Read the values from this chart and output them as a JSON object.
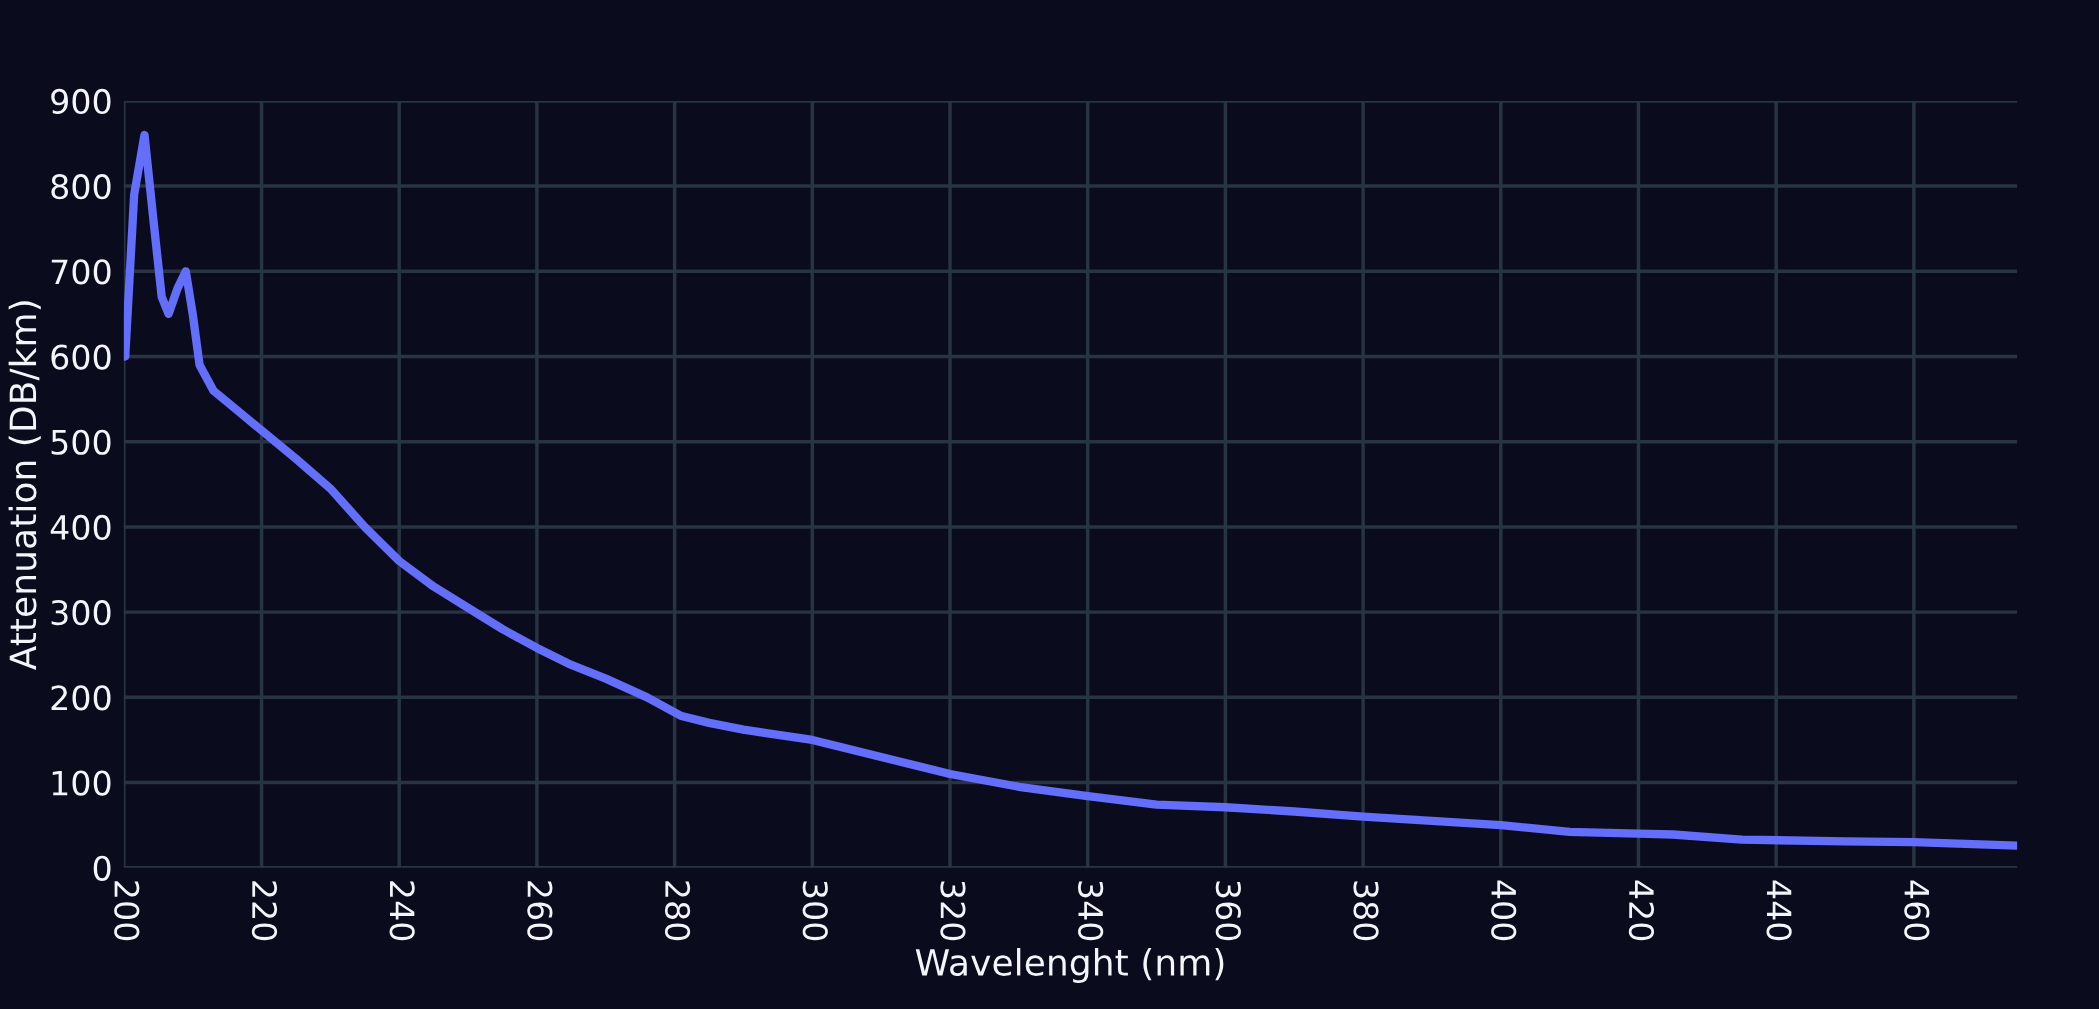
{
  "chart_data": {
    "type": "line",
    "xlabel": "Wavelenght (nm)",
    "ylabel": "Attenuation (DB/km)",
    "x": [
      200.2,
      201.5,
      203,
      204.3,
      205.5,
      206.5,
      207.8,
      209,
      210,
      211,
      213,
      216,
      219,
      225,
      230,
      235,
      240,
      245,
      250,
      255,
      260,
      265,
      270,
      276,
      281,
      285,
      290,
      300,
      310,
      320,
      330,
      340,
      350,
      360,
      370,
      380,
      390,
      400,
      410,
      420,
      425,
      435,
      450,
      460,
      475
    ],
    "series": [
      {
        "color": "#636efa",
        "values": [
          600,
          790,
          860,
          760,
          670,
          650,
          680,
          700,
          650,
          590,
          560,
          540,
          520,
          480,
          445,
          400,
          360,
          330,
          305,
          280,
          258,
          238,
          222,
          200,
          178,
          170,
          162,
          150,
          130,
          110,
          95,
          84,
          74,
          71,
          66,
          60,
          55,
          50,
          42,
          40,
          39,
          33,
          31,
          30,
          26
        ]
      }
    ],
    "xlim": [
      200,
      475
    ],
    "ylim": [
      0,
      900
    ],
    "xticks": [
      200,
      220,
      240,
      260,
      280,
      300,
      320,
      340,
      360,
      380,
      400,
      420,
      440,
      460
    ],
    "yticks": [
      0,
      100,
      200,
      300,
      400,
      500,
      600,
      700,
      800,
      900
    ],
    "grid": true,
    "marker": "none",
    "line_style": "solid"
  }
}
